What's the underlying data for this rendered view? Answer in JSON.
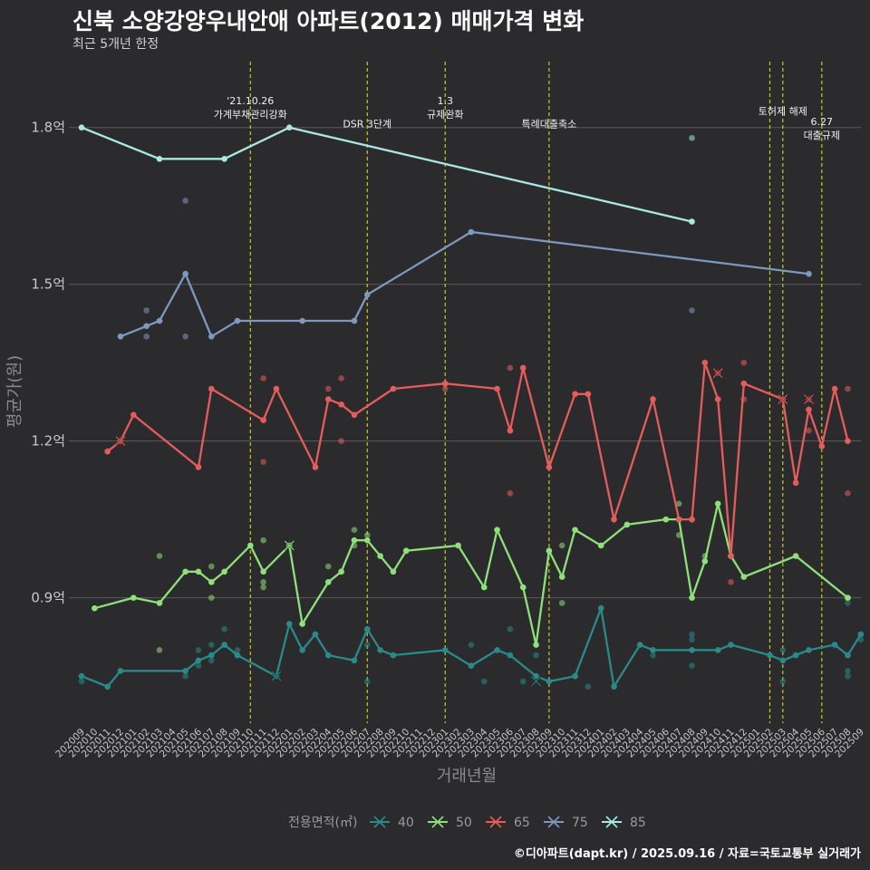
{
  "header": {
    "title": "신북 소양강양우내안애 아파트(2012) 매매가격 변화",
    "subtitle": "최근 5개년 한정"
  },
  "footer": {
    "caption": "©디아파트(dapt.kr) / 2025.09.16 / 자료=국토교통부 실거래가"
  },
  "colors": {
    "background": "#2b2b2d",
    "grid": "#5a5a5a",
    "vline": "#c8c820",
    "40": "#2a8a8a",
    "50": "#8ee07a",
    "65": "#e55c5c",
    "75": "#7f98bf",
    "85": "#a8e8e0"
  },
  "chart_data": {
    "type": "line",
    "xlabel": "거래년월",
    "ylabel": "평균가(원)",
    "x_labels": [
      "202009",
      "202010",
      "202011",
      "202012",
      "202101",
      "202102",
      "202103",
      "202104",
      "202105",
      "202106",
      "202107",
      "202108",
      "202109",
      "202110",
      "202111",
      "202112",
      "202201",
      "202202",
      "202203",
      "202204",
      "202205",
      "202206",
      "202207",
      "202208",
      "202209",
      "202210",
      "202211",
      "202212",
      "202301",
      "202302",
      "202303",
      "202304",
      "202305",
      "202306",
      "202307",
      "202308",
      "202309",
      "202310",
      "202311",
      "202312",
      "202401",
      "202402",
      "202403",
      "202404",
      "202405",
      "202406",
      "202407",
      "202408",
      "202409",
      "202410",
      "202411",
      "202412",
      "202501",
      "202502",
      "202503",
      "202504",
      "202505",
      "202506",
      "202507",
      "202508",
      "202509"
    ],
    "y_ticks": [
      {
        "value": 0.9,
        "label": "0.9억"
      },
      {
        "value": 1.2,
        "label": "1.2억"
      },
      {
        "value": 1.5,
        "label": "1.5억"
      },
      {
        "value": 1.8,
        "label": "1.8억"
      }
    ],
    "ylim": [
      0.66,
      1.94
    ],
    "legend": {
      "title": "전용면적(㎡)",
      "position": "bottom",
      "entries": [
        "40",
        "50",
        "65",
        "75",
        "85"
      ]
    },
    "events": [
      {
        "x": 13,
        "label": "'21.10.26\n가계부채관리강화",
        "label_y": 1.845
      },
      {
        "x": 22,
        "label": "DSR 3단계",
        "label_y": 1.8
      },
      {
        "x": 28,
        "label": "1.3\n규제완화",
        "label_y": 1.845
      },
      {
        "x": 36,
        "label": "특례대출축소",
        "label_y": 1.8
      },
      {
        "x": 53,
        "label": "",
        "label_y": 0
      },
      {
        "x": 54,
        "label": "토허제 해제",
        "label_y": 1.825
      },
      {
        "x": 57,
        "label": "6.27\n대출규제",
        "label_y": 1.805
      }
    ],
    "series": [
      {
        "name": "40",
        "color": "#2a8a8a",
        "points": [
          [
            0,
            0.75
          ],
          [
            2,
            0.73
          ],
          [
            3,
            0.76
          ],
          [
            8,
            0.76
          ],
          [
            9,
            0.78
          ],
          [
            10,
            0.79
          ],
          [
            11,
            0.81
          ],
          [
            12,
            0.79
          ],
          [
            15,
            0.75
          ],
          [
            16,
            0.85
          ],
          [
            17,
            0.8
          ],
          [
            18,
            0.83
          ],
          [
            19,
            0.79
          ],
          [
            21,
            0.78
          ],
          [
            22,
            0.84
          ],
          [
            23,
            0.8
          ],
          [
            24,
            0.79
          ],
          [
            28,
            0.8
          ],
          [
            30,
            0.77
          ],
          [
            32,
            0.8
          ],
          [
            33,
            0.79
          ],
          [
            35,
            0.75
          ],
          [
            36,
            0.74
          ],
          [
            38,
            0.75
          ],
          [
            40,
            0.88
          ],
          [
            41,
            0.73
          ],
          [
            43,
            0.81
          ],
          [
            44,
            0.8
          ],
          [
            47,
            0.8
          ],
          [
            49,
            0.8
          ],
          [
            50,
            0.81
          ],
          [
            53,
            0.79
          ],
          [
            54,
            0.78
          ],
          [
            55,
            0.79
          ],
          [
            56,
            0.8
          ],
          [
            58,
            0.81
          ],
          [
            59,
            0.79
          ],
          [
            60,
            0.83
          ]
        ],
        "scatter": [
          [
            0,
            0.74
          ],
          [
            10,
            0.78
          ],
          [
            11,
            0.84
          ],
          [
            12,
            0.8
          ],
          [
            8,
            0.75
          ],
          [
            9,
            0.77
          ],
          [
            9,
            0.8
          ],
          [
            10,
            0.81
          ],
          [
            22,
            0.74
          ],
          [
            22,
            0.81
          ],
          [
            30,
            0.81
          ],
          [
            31,
            0.74
          ],
          [
            33,
            0.84
          ],
          [
            34,
            0.74
          ],
          [
            35,
            0.79
          ],
          [
            39,
            0.73
          ],
          [
            44,
            0.79
          ],
          [
            47,
            0.82
          ],
          [
            47,
            0.83
          ],
          [
            47,
            0.77
          ],
          [
            54,
            0.74
          ],
          [
            54,
            0.8
          ],
          [
            59,
            0.76
          ],
          [
            59,
            0.75
          ],
          [
            59,
            0.89
          ],
          [
            60,
            0.82
          ]
        ]
      },
      {
        "name": "50",
        "color": "#8ee07a",
        "points": [
          [
            1,
            0.88
          ],
          [
            4,
            0.9
          ],
          [
            6,
            0.89
          ],
          [
            8,
            0.95
          ],
          [
            9,
            0.95
          ],
          [
            10,
            0.93
          ],
          [
            11,
            0.95
          ],
          [
            13,
            1.0
          ],
          [
            14,
            0.95
          ],
          [
            16,
            1.0
          ],
          [
            17,
            0.85
          ],
          [
            19,
            0.93
          ],
          [
            20,
            0.95
          ],
          [
            21,
            1.01
          ],
          [
            22,
            1.01
          ],
          [
            23,
            0.98
          ],
          [
            24,
            0.95
          ],
          [
            25,
            0.99
          ],
          [
            29,
            1.0
          ],
          [
            31,
            0.92
          ],
          [
            32,
            1.03
          ],
          [
            34,
            0.92
          ],
          [
            35,
            0.81
          ],
          [
            36,
            0.99
          ],
          [
            37,
            0.94
          ],
          [
            38,
            1.03
          ],
          [
            40,
            1.0
          ],
          [
            42,
            1.04
          ],
          [
            45,
            1.05
          ],
          [
            46,
            1.05
          ],
          [
            47,
            0.9
          ],
          [
            48,
            0.97
          ],
          [
            49,
            1.08
          ],
          [
            50,
            0.98
          ],
          [
            51,
            0.94
          ],
          [
            55,
            0.98
          ],
          [
            59,
            0.9
          ]
        ],
        "scatter": [
          [
            6,
            0.98
          ],
          [
            6,
            0.8
          ],
          [
            10,
            0.96
          ],
          [
            10,
            0.9
          ],
          [
            14,
            1.01
          ],
          [
            14,
            0.93
          ],
          [
            14,
            0.92
          ],
          [
            19,
            0.96
          ],
          [
            20,
            0.95
          ],
          [
            21,
            1.0
          ],
          [
            21,
            1.03
          ],
          [
            22,
            1.02
          ],
          [
            37,
            0.89
          ],
          [
            37,
            1.0
          ],
          [
            46,
            1.08
          ],
          [
            46,
            1.02
          ],
          [
            48,
            0.98
          ],
          [
            59,
            0.9
          ]
        ]
      },
      {
        "name": "65",
        "color": "#e55c5c",
        "points": [
          [
            2,
            1.18
          ],
          [
            3,
            1.2
          ],
          [
            4,
            1.25
          ],
          [
            9,
            1.15
          ],
          [
            10,
            1.3
          ],
          [
            14,
            1.24
          ],
          [
            15,
            1.3
          ],
          [
            18,
            1.15
          ],
          [
            19,
            1.28
          ],
          [
            20,
            1.27
          ],
          [
            21,
            1.25
          ],
          [
            24,
            1.3
          ],
          [
            28,
            1.31
          ],
          [
            32,
            1.3
          ],
          [
            33,
            1.22
          ],
          [
            34,
            1.34
          ],
          [
            36,
            1.15
          ],
          [
            38,
            1.29
          ],
          [
            39,
            1.29
          ],
          [
            41,
            1.05
          ],
          [
            44,
            1.28
          ],
          [
            46,
            1.05
          ],
          [
            47,
            1.05
          ],
          [
            48,
            1.35
          ],
          [
            49,
            1.28
          ],
          [
            50,
            0.98
          ],
          [
            51,
            1.31
          ],
          [
            54,
            1.28
          ],
          [
            55,
            1.12
          ],
          [
            56,
            1.26
          ],
          [
            57,
            1.19
          ],
          [
            58,
            1.3
          ],
          [
            59,
            1.2
          ]
        ],
        "scatter": [
          [
            3,
            1.2
          ],
          [
            14,
            1.32
          ],
          [
            14,
            1.16
          ],
          [
            20,
            1.32
          ],
          [
            20,
            1.2
          ],
          [
            19,
            1.3
          ],
          [
            28,
            1.3
          ],
          [
            33,
            1.34
          ],
          [
            33,
            1.1
          ],
          [
            36,
            1.16
          ],
          [
            47,
            1.05
          ],
          [
            49,
            1.33
          ],
          [
            51,
            1.35
          ],
          [
            50,
            0.93
          ],
          [
            51,
            1.28
          ],
          [
            56,
            1.22
          ],
          [
            57,
            1.19
          ],
          [
            59,
            1.3
          ],
          [
            59,
            1.1
          ],
          [
            54,
            1.28
          ],
          [
            56,
            1.28
          ]
        ]
      },
      {
        "name": "75",
        "color": "#7f98bf",
        "points": [
          [
            3,
            1.4
          ],
          [
            5,
            1.42
          ],
          [
            6,
            1.43
          ],
          [
            8,
            1.52
          ],
          [
            10,
            1.4
          ],
          [
            12,
            1.43
          ],
          [
            17,
            1.43
          ],
          [
            21,
            1.43
          ],
          [
            22,
            1.48
          ],
          [
            30,
            1.6
          ],
          [
            56,
            1.52
          ]
        ],
        "scatter": [
          [
            5,
            1.45
          ],
          [
            5,
            1.4
          ],
          [
            8,
            1.66
          ],
          [
            8,
            1.4
          ],
          [
            47,
            1.45
          ]
        ]
      },
      {
        "name": "85",
        "color": "#a8e8e0",
        "points": [
          [
            0,
            1.8
          ],
          [
            6,
            1.74
          ],
          [
            11,
            1.74
          ],
          [
            16,
            1.8
          ],
          [
            47,
            1.62
          ]
        ],
        "scatter": [
          [
            47,
            1.78
          ]
        ]
      }
    ],
    "markers_x": [
      {
        "series": "40",
        "x": 15,
        "y": 0.75
      },
      {
        "series": "40",
        "x": 35,
        "y": 0.74
      },
      {
        "series": "50",
        "x": 16,
        "y": 1.0
      },
      {
        "series": "65",
        "x": 3,
        "y": 1.2
      },
      {
        "series": "65",
        "x": 49,
        "y": 1.33
      },
      {
        "series": "65",
        "x": 54,
        "y": 1.28
      },
      {
        "series": "65",
        "x": 56,
        "y": 1.28
      }
    ]
  }
}
